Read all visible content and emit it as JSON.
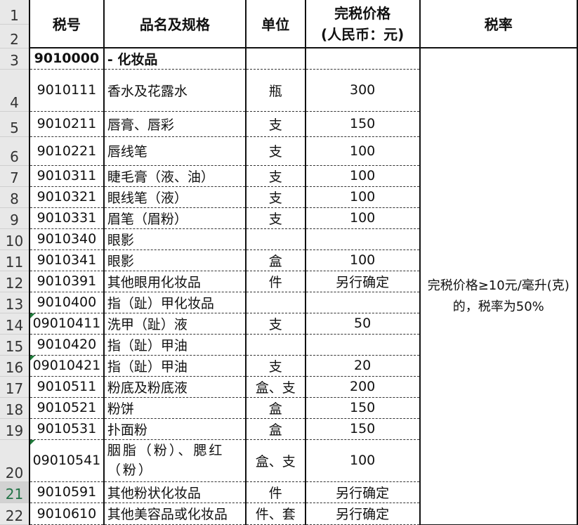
{
  "headers": {
    "code": "税号",
    "name": "品名及规格",
    "unit": "单位",
    "price_line1": "完税价格",
    "price_line2": "(人民币：元)",
    "rate": "税率"
  },
  "category": {
    "row": "3",
    "code": "9010000",
    "name": " - 化妆品"
  },
  "rate_note": "完税价格≥10元/毫升(克)的，税率为50%",
  "selected_row": "21",
  "rows": [
    {
      "row": "4",
      "code": "9010111",
      "name": "香水及花露水",
      "unit": "瓶",
      "price": "300"
    },
    {
      "row": "5",
      "code": "9010211",
      "name": "唇膏、唇彩",
      "unit": "支",
      "price": "150"
    },
    {
      "row": "6",
      "code": "9010221",
      "name": "唇线笔",
      "unit": "支",
      "price": "100"
    },
    {
      "row": "7",
      "code": "9010311",
      "name": "睫毛膏（液、油）",
      "unit": "支",
      "price": "100"
    },
    {
      "row": "8",
      "code": "9010321",
      "name": "眼线笔（液）",
      "unit": "支",
      "price": "100"
    },
    {
      "row": "9",
      "code": "9010331",
      "name": "眉笔（眉粉）",
      "unit": "支",
      "price": "100"
    },
    {
      "row": "10",
      "code": "9010340",
      "name": "眼影",
      "unit": "",
      "price": ""
    },
    {
      "row": "11",
      "code": "9010341",
      "name": "眼影",
      "unit": "盒",
      "price": "100"
    },
    {
      "row": "12",
      "code": "9010391",
      "name": "其他眼用化妆品",
      "unit": "件",
      "price": "另行确定"
    },
    {
      "row": "13",
      "code": "9010400",
      "name": "指（趾）甲化妆品",
      "unit": "",
      "price": ""
    },
    {
      "row": "14",
      "code": "09010411",
      "name": "洗甲（趾）液",
      "unit": "支",
      "price": "50"
    },
    {
      "row": "15",
      "code": "9010420",
      "name": "指（趾）甲油",
      "unit": "",
      "price": ""
    },
    {
      "row": "16",
      "code": "09010421",
      "name": "指（趾）甲油",
      "unit": "支",
      "price": "20"
    },
    {
      "row": "17",
      "code": "9010511",
      "name": "粉底及粉底液",
      "unit": "盒、支",
      "price": "200"
    },
    {
      "row": "18",
      "code": "9010521",
      "name": "粉饼",
      "unit": "盒",
      "price": "150"
    },
    {
      "row": "19",
      "code": "9010531",
      "name": "扑面粉",
      "unit": "盒",
      "price": "150"
    },
    {
      "row": "20",
      "code": "09010541",
      "name": "胭脂（粉）、腮红（粉）",
      "unit": "盒、支",
      "price": "100"
    },
    {
      "row": "21",
      "code": "9010591",
      "name": "其他粉状化妆品",
      "unit": "件",
      "price": "另行确定"
    },
    {
      "row": "22",
      "code": "9010610",
      "name": "其他美容品或化妆品",
      "unit": "件、套",
      "price": "另行确定"
    }
  ]
}
